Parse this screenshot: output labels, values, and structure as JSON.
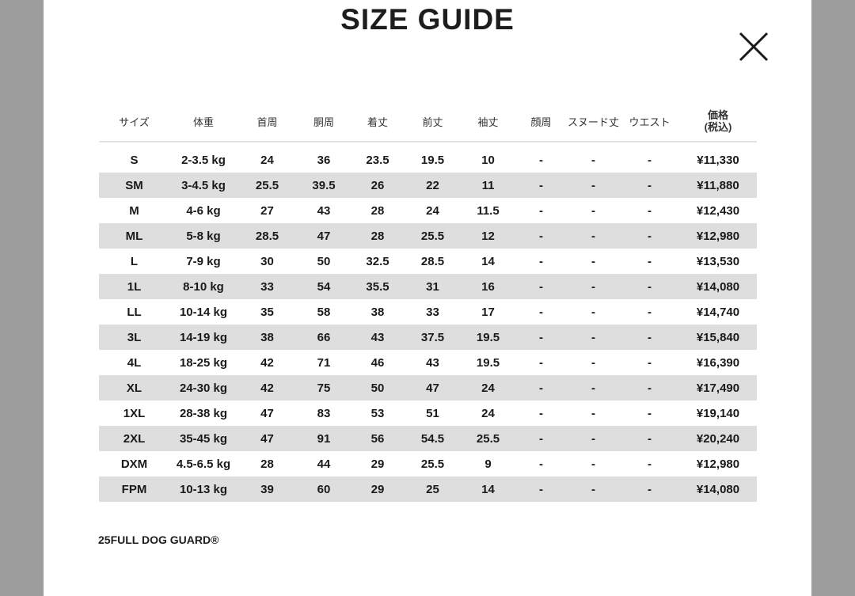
{
  "title": "SIZE GUIDE",
  "close_icon": "close-x-icon",
  "headers": [
    "サイズ",
    "体重",
    "首周",
    "胴周",
    "着丈",
    "前丈",
    "袖丈",
    "顔周",
    "スヌード丈",
    "ウエスト",
    "価格\n(税込)"
  ],
  "header_price_line1": "価格",
  "header_price_line2": "(税込)",
  "rows": [
    [
      "S",
      "2-3.5 kg",
      "24",
      "36",
      "23.5",
      "19.5",
      "10",
      "-",
      "-",
      "-",
      "¥11,330"
    ],
    [
      "SM",
      "3-4.5 kg",
      "25.5",
      "39.5",
      "26",
      "22",
      "11",
      "-",
      "-",
      "-",
      "¥11,880"
    ],
    [
      "M",
      "4-6 kg",
      "27",
      "43",
      "28",
      "24",
      "11.5",
      "-",
      "-",
      "-",
      "¥12,430"
    ],
    [
      "ML",
      "5-8 kg",
      "28.5",
      "47",
      "28",
      "25.5",
      "12",
      "-",
      "-",
      "-",
      "¥12,980"
    ],
    [
      "L",
      "7-9 kg",
      "30",
      "50",
      "32.5",
      "28.5",
      "14",
      "-",
      "-",
      "-",
      "¥13,530"
    ],
    [
      "1L",
      "8-10 kg",
      "33",
      "54",
      "35.5",
      "31",
      "16",
      "-",
      "-",
      "-",
      "¥14,080"
    ],
    [
      "LL",
      "10-14 kg",
      "35",
      "58",
      "38",
      "33",
      "17",
      "-",
      "-",
      "-",
      "¥14,740"
    ],
    [
      "3L",
      "14-19 kg",
      "38",
      "66",
      "43",
      "37.5",
      "19.5",
      "-",
      "-",
      "-",
      "¥15,840"
    ],
    [
      "4L",
      "18-25 kg",
      "42",
      "71",
      "46",
      "43",
      "19.5",
      "-",
      "-",
      "-",
      "¥16,390"
    ],
    [
      "XL",
      "24-30 kg",
      "42",
      "75",
      "50",
      "47",
      "24",
      "-",
      "-",
      "-",
      "¥17,490"
    ],
    [
      "1XL",
      "28-38 kg",
      "47",
      "83",
      "53",
      "51",
      "24",
      "-",
      "-",
      "-",
      "¥19,140"
    ],
    [
      "2XL",
      "35-45 kg",
      "47",
      "91",
      "56",
      "54.5",
      "25.5",
      "-",
      "-",
      "-",
      "¥20,240"
    ],
    [
      "DXM",
      "4.5-6.5 kg",
      "28",
      "44",
      "29",
      "25.5",
      "9",
      "-",
      "-",
      "-",
      "¥12,980"
    ],
    [
      "FPM",
      "10-13 kg",
      "39",
      "60",
      "29",
      "25",
      "14",
      "-",
      "-",
      "-",
      "¥14,080"
    ]
  ],
  "footer": "25FULL DOG GUARD®",
  "colors": {
    "background": "#9d9d9d",
    "panel": "#ffffff",
    "stripe": "#dedede"
  }
}
